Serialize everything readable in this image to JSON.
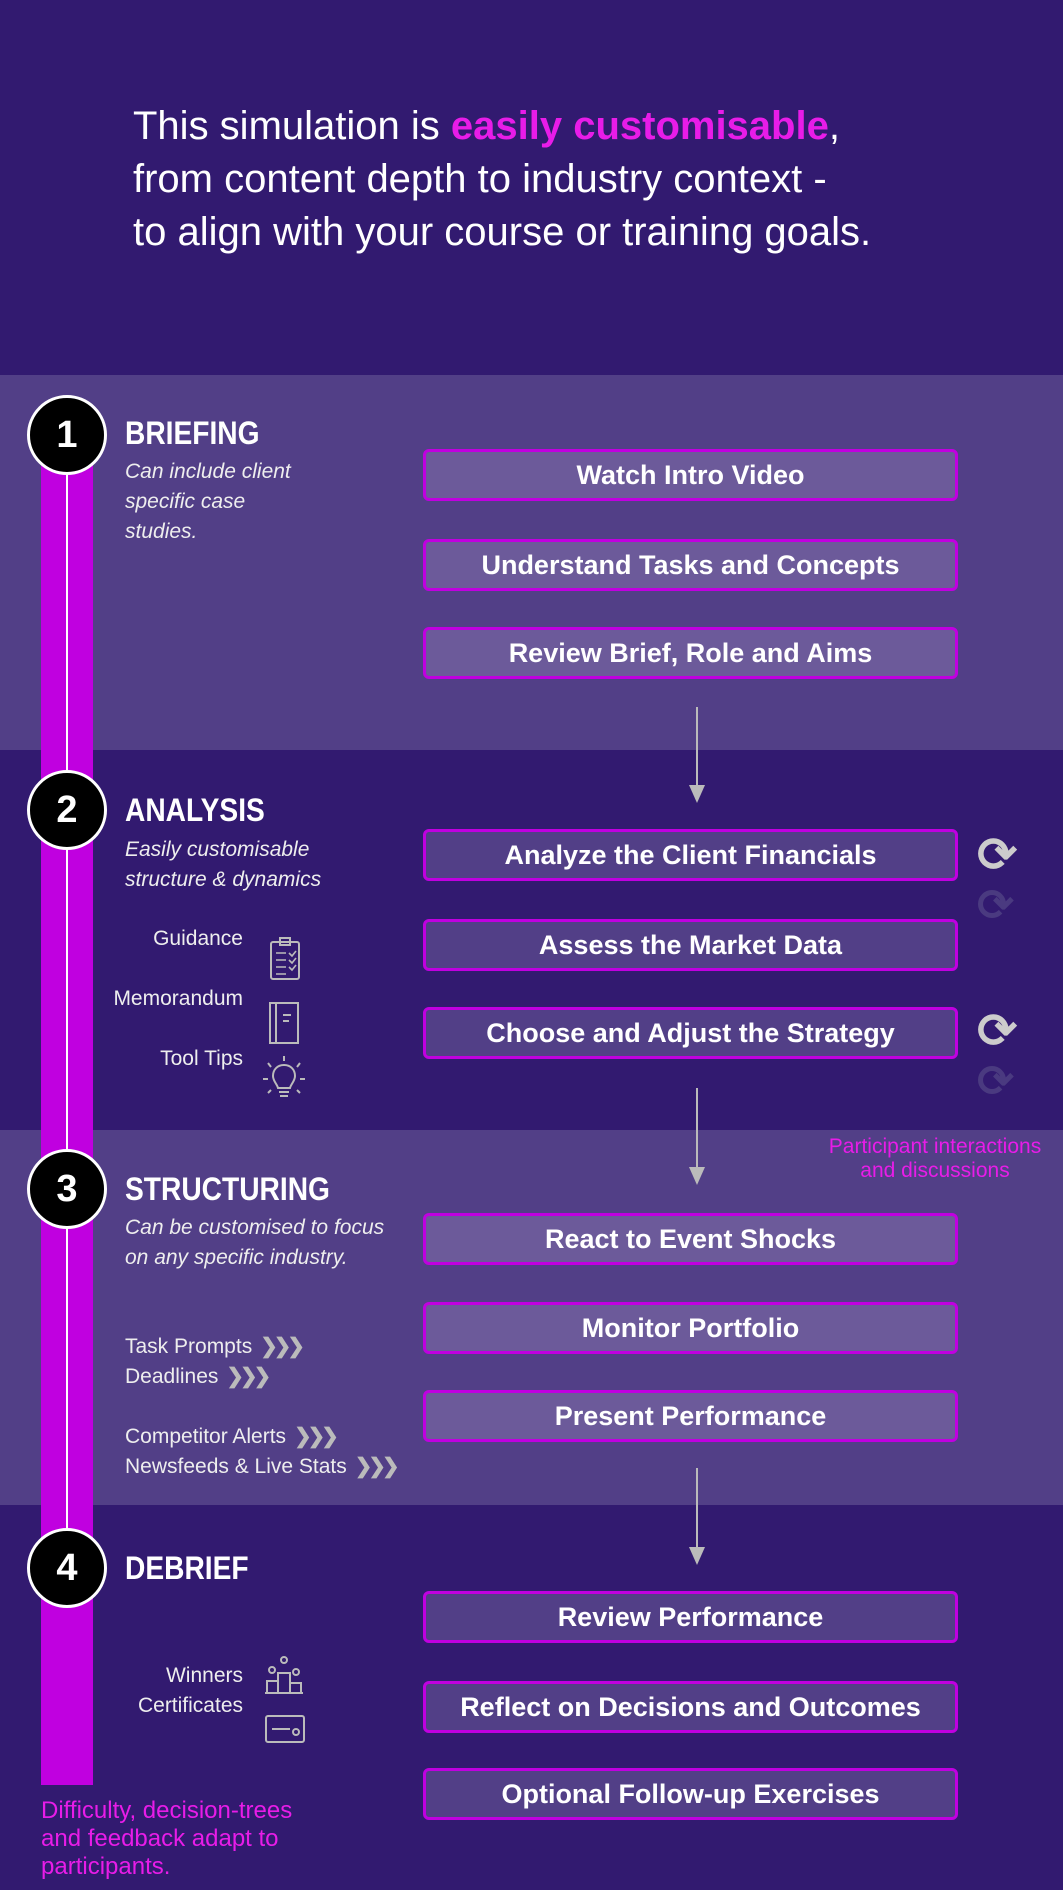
{
  "header": {
    "line1_pre": "This simulation is ",
    "line1_highlight": "easily customisable",
    "line1_post": ",",
    "line2": "from content depth to industry context -",
    "line3": "to align with your course or training goals."
  },
  "colors": {
    "dark_band": "#321a70",
    "light_band": "#523f87",
    "accent": "#c000e0",
    "highlight": "#e81ce8"
  },
  "sections": [
    {
      "number": "1",
      "title": "BRIEFING",
      "desc": [
        "Can include client",
        "specific case",
        "studies."
      ],
      "steps": [
        "Watch Intro Video",
        "Understand Tasks and Concepts",
        "Review Brief, Role and Aims"
      ]
    },
    {
      "number": "2",
      "title": "ANALYSIS",
      "desc": [
        "Easily customisable",
        "structure & dynamics"
      ],
      "steps": [
        "Analyze the Client Financials",
        "Assess the Market Data",
        "Choose and Adjust the Strategy"
      ],
      "tools": [
        {
          "label": "Guidance",
          "icon": "clipboard-checklist-icon"
        },
        {
          "label": "Memorandum",
          "icon": "notebook-icon"
        },
        {
          "label": "Tool Tips",
          "icon": "lightbulb-icon"
        }
      ]
    },
    {
      "number": "3",
      "title": "STRUCTURING",
      "desc": [
        "Can be customised to focus",
        "on any specific industry."
      ],
      "steps": [
        "React to Event Shocks",
        "Monitor Portfolio",
        "Present Performance"
      ],
      "features": [
        "Task Prompts",
        "Deadlines",
        "Competitor Alerts",
        "Newsfeeds & Live Stats"
      ]
    },
    {
      "number": "4",
      "title": "DEBRIEF",
      "steps": [
        "Review Performance",
        "Reflect on Decisions and Outcomes",
        "Optional Follow-up Exercises"
      ],
      "rewards": [
        {
          "label": "Winners",
          "icon": "podium-icon"
        },
        {
          "label": "Certificates",
          "icon": "certificate-icon"
        }
      ]
    }
  ],
  "notes": {
    "interactions": [
      "Participant interactions",
      "and discussions"
    ],
    "adaptive": [
      "Difficulty, decision-trees",
      "and feedback adapt to",
      "participants."
    ]
  }
}
